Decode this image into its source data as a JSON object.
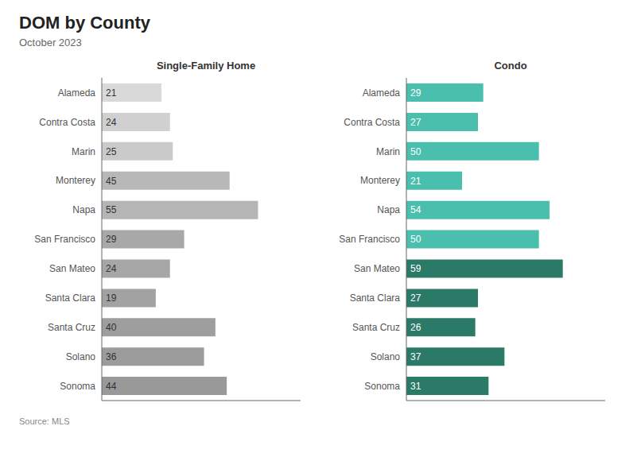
{
  "title": "DOM by County",
  "subtitle": "October 2023",
  "annotations": [
    "Source: MLS"
  ],
  "chart_data": [
    {
      "type": "bar",
      "orientation": "horizontal",
      "title": "Single-Family Home",
      "categories": [
        "Alameda",
        "Contra Costa",
        "Marin",
        "Monterey",
        "Napa",
        "San Francisco",
        "San Mateo",
        "Santa Clara",
        "Santa Cruz",
        "Solano",
        "Sonoma"
      ],
      "values": [
        21,
        24,
        25,
        45,
        55,
        29,
        24,
        19,
        40,
        36,
        44
      ],
      "colors": [
        "#d9d9d9",
        "#d0d0d0",
        "#cacaca",
        "#b8b8b8",
        "#b5b5b5",
        "#a8a8a8",
        "#a6a6a6",
        "#a2a2a2",
        "#9e9e9e",
        "#9b9b9b",
        "#999999"
      ],
      "xlim": [
        0,
        70
      ],
      "tick_labels": "y",
      "data_labels": true,
      "grid": false
    },
    {
      "type": "bar",
      "orientation": "horizontal",
      "title": "Condo",
      "categories": [
        "Alameda",
        "Contra Costa",
        "Marin",
        "Monterey",
        "Napa",
        "San Francisco",
        "San Mateo",
        "Santa Clara",
        "Santa Cruz",
        "Solano",
        "Sonoma"
      ],
      "values": [
        29,
        27,
        50,
        21,
        54,
        50,
        59,
        27,
        26,
        37,
        31
      ],
      "colors": [
        "#4abfad",
        "#4abfad",
        "#4abfad",
        "#4abfad",
        "#4abfad",
        "#4abfad",
        "#2b7a68",
        "#2b7a68",
        "#2b7a68",
        "#2b7a68",
        "#2b7a68"
      ],
      "xlim": [
        0,
        75
      ],
      "tick_labels": "y",
      "data_labels": true,
      "grid": false
    }
  ]
}
